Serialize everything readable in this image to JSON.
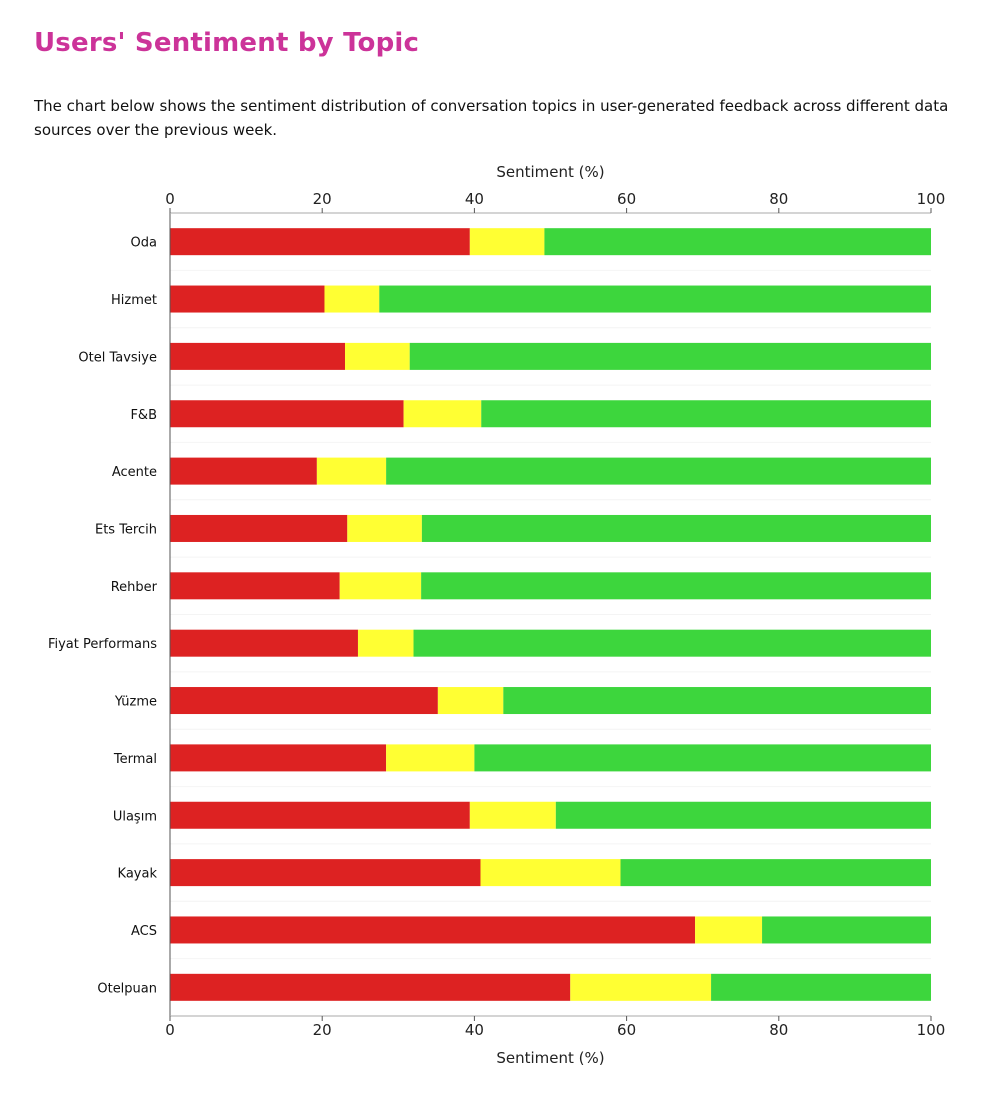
{
  "page": {
    "title": "Users' Sentiment by Topic",
    "description": "The chart below shows the sentiment distribution of conversation topics in user-generated feedback across different data sources over the previous week."
  },
  "colors": {
    "title": "#cc3399",
    "negative": "#dd2222",
    "neutral": "#ffff33",
    "positive": "#3dd63d"
  },
  "chart_data": {
    "type": "bar",
    "orientation": "horizontal",
    "stacked": true,
    "xlabel": "Sentiment (%)",
    "xlim": [
      0,
      100
    ],
    "xticks": [
      0,
      20,
      40,
      60,
      80,
      100
    ],
    "categories": [
      "Oda",
      "Hizmet",
      "Otel Tavsiye",
      "F&B",
      "Acente",
      "Ets Tercih",
      "Rehber",
      "Fiyat Performans",
      "Yüzme",
      "Termal",
      "Ulaşım",
      "Kayak",
      "ACS",
      "Otelpuan"
    ],
    "series": [
      {
        "color": "#dd2222",
        "values": [
          39.4,
          20.3,
          23.0,
          30.7,
          19.3,
          23.3,
          22.3,
          24.7,
          35.2,
          28.4,
          39.4,
          40.8,
          69.0,
          52.6
        ]
      },
      {
        "color": "#ffff33",
        "values": [
          9.8,
          7.2,
          8.5,
          10.2,
          9.1,
          9.8,
          10.7,
          7.3,
          8.6,
          11.6,
          11.3,
          18.4,
          8.8,
          18.5
        ]
      },
      {
        "color": "#3dd63d",
        "values": [
          50.8,
          72.5,
          68.5,
          59.1,
          71.6,
          66.9,
          67.0,
          68.0,
          56.2,
          60.0,
          49.3,
          40.8,
          22.2,
          28.9
        ]
      }
    ]
  }
}
